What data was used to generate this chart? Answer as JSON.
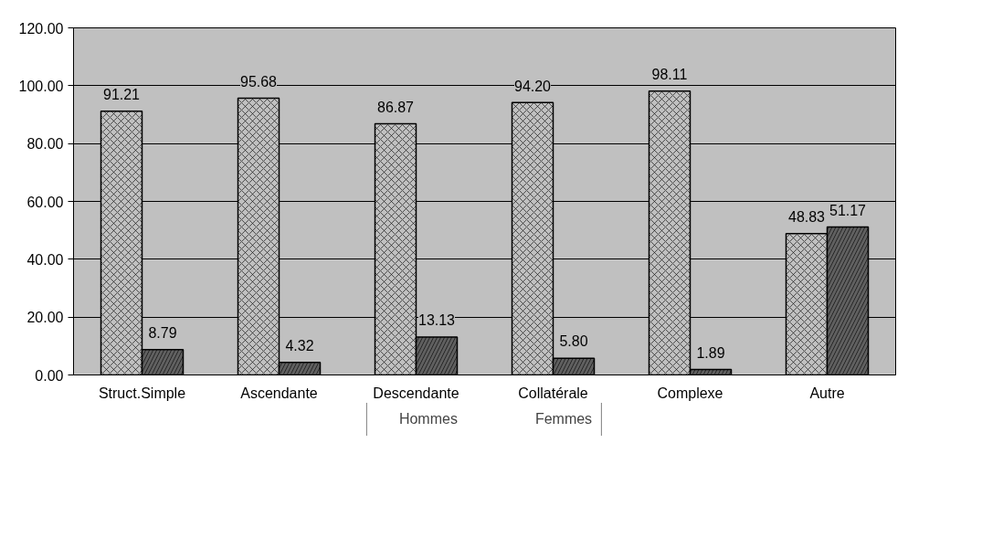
{
  "chart_data": {
    "type": "bar",
    "categories": [
      "Struct.Simple",
      "Ascendante",
      "Descendante",
      "Collatérale",
      "Complexe",
      "Autre"
    ],
    "series": [
      {
        "name": "Hommes",
        "color": "#c0c0c0",
        "values": [
          91.21,
          95.68,
          86.87,
          94.2,
          98.11,
          48.83
        ],
        "value_labels": [
          "91.21",
          "95.68",
          "86.87",
          "94.20",
          "98.11",
          "48.83"
        ]
      },
      {
        "name": "Femmes",
        "color": "#606060",
        "values": [
          8.79,
          4.32,
          13.13,
          5.8,
          1.89,
          51.17
        ],
        "value_labels": [
          "8.79",
          "4.32",
          "13.13",
          "5.80",
          "1.89",
          "51.17"
        ]
      }
    ],
    "ylim": [
      0,
      120
    ],
    "yticks": [
      {
        "value": 0,
        "label": "0.00"
      },
      {
        "value": 20,
        "label": "20.00"
      },
      {
        "value": 40,
        "label": "40.00"
      },
      {
        "value": 60,
        "label": "60.00"
      },
      {
        "value": 80,
        "label": "80.00"
      },
      {
        "value": 100,
        "label": "100.00"
      },
      {
        "value": 120,
        "label": "120.00"
      }
    ],
    "grid": "y",
    "legend": "bottom"
  }
}
